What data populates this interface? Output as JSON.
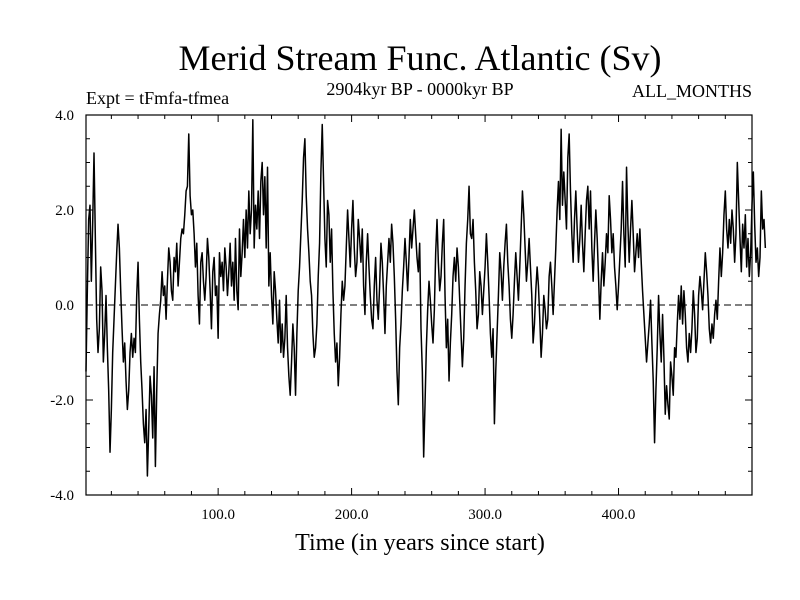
{
  "chart_data": {
    "type": "line",
    "title": "Merid Stream Func. Atlantic (Sv)",
    "subtitle": "2904kyr BP - 0000kyr BP",
    "expt_label": "Expt = tFmfa-tfmea",
    "months_label": "ALL_MONTHS",
    "xlabel": "Time (in years since start)",
    "ylabel": "",
    "xlim": [
      1,
      500
    ],
    "ylim": [
      -4.0,
      4.0
    ],
    "x_ticks": [
      100,
      200,
      300,
      400
    ],
    "x_tick_labels": [
      "100.0",
      "200.0",
      "300.0",
      "400.0"
    ],
    "y_ticks": [
      4,
      2,
      0,
      -2,
      -4
    ],
    "y_tick_labels": [
      "4.0",
      "2.0",
      "0.0",
      "-2.0",
      "-4.0"
    ],
    "zero_line": 0.0,
    "grid": false,
    "series": [
      {
        "name": "Merid Stream Func. Atlantic",
        "x_start": 1,
        "x_step": 1,
        "values": [
          -1.4,
          0.3,
          1.8,
          2.1,
          0.5,
          1.7,
          3.2,
          1.4,
          -0.3,
          -1.0,
          -0.5,
          0.8,
          0.3,
          -1.2,
          -0.6,
          0.2,
          -0.9,
          -1.8,
          -3.1,
          -2.2,
          -1.0,
          -0.3,
          0.4,
          1.1,
          1.7,
          1.2,
          0.3,
          -0.5,
          -1.2,
          -0.8,
          -1.6,
          -2.2,
          -1.8,
          -1.0,
          -0.6,
          -1.1,
          -0.7,
          -1.0,
          0.2,
          0.9,
          -0.3,
          -1.2,
          -1.8,
          -2.5,
          -2.9,
          -2.2,
          -3.6,
          -2.6,
          -1.5,
          -1.9,
          -2.8,
          -1.3,
          -3.4,
          -1.8,
          -0.6,
          -0.2,
          0.1,
          0.7,
          0.2,
          0.4,
          -0.3,
          0.5,
          1.2,
          0.9,
          0.3,
          0.1,
          1.0,
          0.7,
          1.3,
          0.4,
          0.9,
          1.4,
          1.6,
          1.5,
          1.9,
          2.4,
          2.5,
          3.6,
          2.3,
          1.9,
          2.0,
          1.5,
          0.8,
          1.3,
          0.2,
          -0.4,
          0.9,
          1.1,
          0.5,
          0.1,
          0.6,
          1.4,
          1.0,
          0.3,
          -0.5,
          0.7,
          1.0,
          0.2,
          0.4,
          -0.7,
          1.1,
          0.6,
          0.9,
          0.3,
          1.2,
          0.8,
          0.2,
          0.7,
          1.3,
          0.4,
          0.9,
          0.1,
          1.4,
          0.3,
          -0.1,
          1.6,
          0.6,
          1.1,
          1.8,
          1.0,
          2.0,
          1.2,
          2.4,
          1.5,
          2.0,
          3.9,
          1.2,
          2.1,
          1.6,
          2.4,
          1.4,
          2.6,
          3.0,
          1.9,
          2.7,
          1.2,
          2.9,
          0.4,
          1.1,
          0.2,
          -0.4,
          0.7,
          0.3,
          -0.3,
          -0.8,
          0.1,
          -1.0,
          -0.4,
          -1.1,
          -0.7,
          0.2,
          -0.9,
          -1.5,
          -1.9,
          -1.2,
          -0.4,
          -0.9,
          -1.9,
          -0.6,
          0.3,
          0.8,
          1.5,
          2.2,
          3.1,
          3.5,
          2.3,
          1.6,
          1.1,
          0.5,
          0.2,
          -0.6,
          -1.1,
          -0.9,
          -0.4,
          0.6,
          1.3,
          2.8,
          3.8,
          2.6,
          1.4,
          0.8,
          2.2,
          1.9,
          0.9,
          1.6,
          0.3,
          -0.6,
          -1.2,
          -0.8,
          -1.7,
          -1.1,
          -0.2,
          0.5,
          0.1,
          0.4,
          1.2,
          2.0,
          1.4,
          0.8,
          1.6,
          2.2,
          1.2,
          0.6,
          0.9,
          1.8,
          1.4,
          0.9,
          1.6,
          0.4,
          -0.2,
          0.9,
          1.5,
          0.8,
          0.2,
          -0.3,
          -0.5,
          0.4,
          1.0,
          0.1,
          -0.3,
          0.4,
          1.3,
          0.9,
          0.2,
          -0.6,
          0.4,
          0.9,
          1.4,
          0.9,
          1.7,
          1.3,
          0.6,
          -0.3,
          -1.4,
          -2.1,
          -0.9,
          -0.4,
          0.3,
          0.8,
          1.4,
          0.9,
          0.3,
          1.0,
          1.8,
          1.2,
          1.6,
          2.0,
          1.5,
          1.0,
          0.7,
          1.3,
          -0.5,
          -1.4,
          -3.2,
          -2.1,
          -0.9,
          -0.1,
          0.5,
          0.1,
          -0.4,
          -0.8,
          -0.1,
          1.1,
          1.8,
          0.9,
          0.3,
          0.6,
          1.3,
          1.8,
          0.2,
          -0.9,
          -0.3,
          -1.6,
          -0.8,
          -0.2,
          0.6,
          1.0,
          0.5,
          1.2,
          0.8,
          0.1,
          -0.6,
          -1.3,
          -0.7,
          0.4,
          1.3,
          1.8,
          2.5,
          1.5,
          1.4,
          1.8,
          0.9,
          0.3,
          -0.5,
          -0.2,
          0.7,
          0.4,
          -0.2,
          0.3,
          0.8,
          1.5,
          0.9,
          0.2,
          -0.6,
          -1.1,
          -0.5,
          -2.5,
          -1.4,
          -0.6,
          0.2,
          1.1,
          0.7,
          0.1,
          0.8,
          1.3,
          1.7,
          0.9,
          0.4,
          -0.3,
          -0.7,
          -0.2,
          0.5,
          1.1,
          0.6,
          0.1,
          0.8,
          1.6,
          2.4,
          1.9,
          1.2,
          0.5,
          0.9,
          1.4,
          0.8,
          0.2,
          -0.8,
          -0.4,
          0.3,
          0.8,
          0.4,
          -0.3,
          -1.1,
          -0.6,
          0.2,
          -0.1,
          -0.5,
          -0.3,
          0.6,
          0.9,
          0.4,
          -0.2,
          0.5,
          1.2,
          2.0,
          2.6,
          1.8,
          3.7,
          2.1,
          2.8,
          2.2,
          1.6,
          3.1,
          3.6,
          2.4,
          1.5,
          0.9,
          1.8,
          2.4,
          1.6,
          0.9,
          1.4,
          2.1,
          1.3,
          0.7,
          1.5,
          2.2,
          2.5,
          1.6,
          2.4,
          1.2,
          0.5,
          1.3,
          2.0,
          1.4,
          0.6,
          -0.3,
          0.5,
          1.1,
          0.4,
          0.9,
          1.5,
          1.1,
          2.3,
          1.8,
          1.1,
          1.5,
          0.8,
          0.4,
          -0.1,
          0.4,
          1.0,
          1.6,
          2.6,
          1.5,
          0.8,
          2.9,
          1.7,
          0.9,
          1.6,
          2.2,
          1.5,
          0.7,
          1.1,
          1.5,
          1.0,
          1.6,
          0.9,
          0.3,
          -0.2,
          -0.7,
          -1.2,
          -0.8,
          -0.4,
          0.1,
          -0.8,
          -1.6,
          -2.9,
          -1.8,
          -0.9,
          0.2,
          -0.6,
          -1.2,
          -0.2,
          -1.1,
          -2.3,
          -1.7,
          -2.1,
          -2.4,
          -1.2,
          -1.5,
          -1.9,
          -0.9,
          -1.1,
          -0.4,
          0.2,
          -0.3,
          0.4,
          -0.4,
          0.3,
          -0.2,
          -0.9,
          -1.2,
          -0.6,
          -1.0,
          -0.5,
          0.3,
          -0.2,
          -1.0,
          -0.7,
          0.2,
          0.6,
          0.3,
          -0.1,
          0.5,
          1.1,
          0.7,
          0.2,
          -0.5,
          -0.8,
          -0.4,
          -0.7,
          -0.2,
          0.1,
          -0.3,
          0.5,
          1.2,
          0.6,
          1.1,
          1.9,
          2.4,
          1.6,
          1.2,
          1.8,
          1.3,
          2.0,
          1.6,
          0.9,
          1.5,
          3.0,
          2.2,
          1.4,
          0.7,
          1.7,
          1.2,
          1.9,
          0.8,
          1.4,
          0.6,
          1.1,
          2.1,
          2.8,
          1.7,
          0.9,
          1.2,
          0.6,
          1.0,
          2.4,
          1.6,
          1.8,
          1.2
        ]
      }
    ]
  }
}
